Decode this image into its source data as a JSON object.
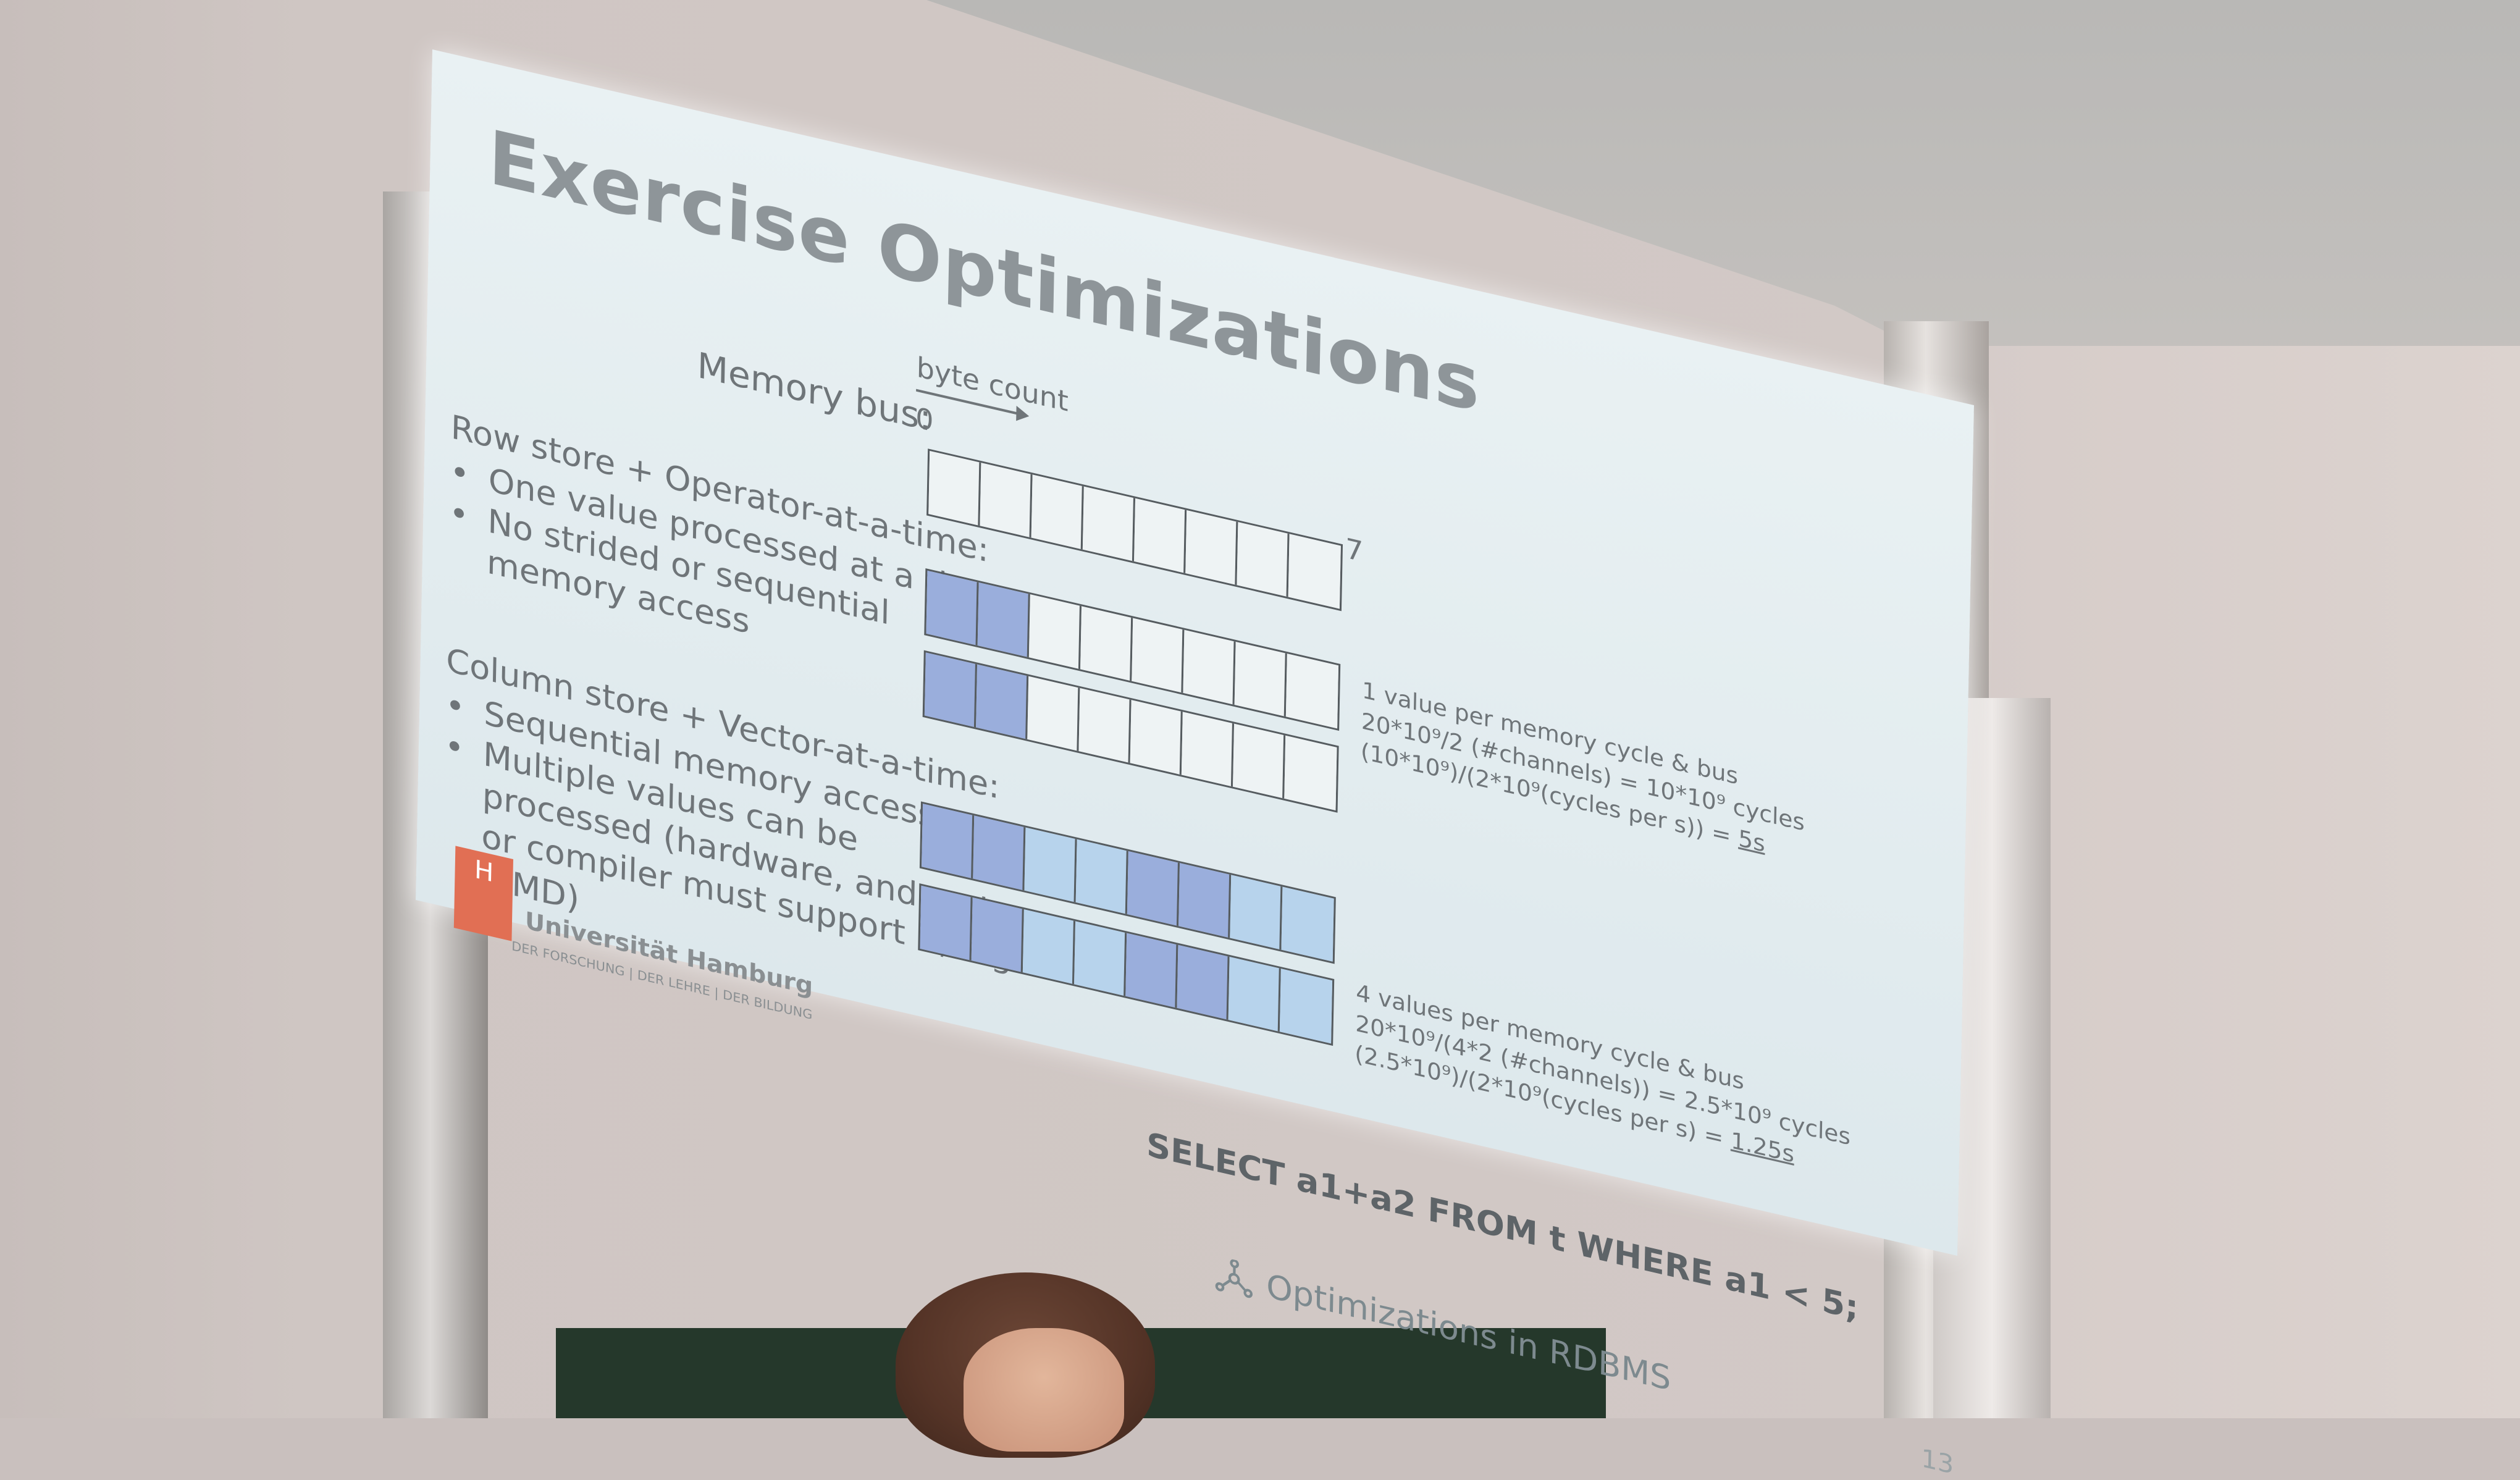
{
  "slide": {
    "title": "Exercise Optimizations",
    "memory_bus_label": "Memory bus:",
    "byte_count_label": "byte count",
    "index_start": "0",
    "index_end": "7",
    "row_store": {
      "heading": "Row store + Operator-at-a-time:",
      "bullets": [
        "One value processed at a time",
        "No strided or sequential",
        "memory access"
      ]
    },
    "column_store": {
      "heading": "Column store + Vector-at-a-time:",
      "bullets": [
        "Sequential memory access",
        "Multiple values can be",
        "processed (hardware, and code",
        "or compiler must support it, e.g.",
        "SIMD)"
      ]
    },
    "row_note": {
      "line1": "1 value per memory cycle & bus",
      "line2": "20*10⁹/2 (#channels) = 10*10⁹ cycles",
      "line3": "(10*10⁹)/(2*10⁹(cycles per s)) = ",
      "result": "5s"
    },
    "column_note": {
      "line1": "4 values per memory cycle & bus",
      "line2": "20*10⁹/(4*2 (#channels)) = 2.5*10⁹ cycles",
      "line3": "(2.5*10⁹)/(2*10⁹(cycles per s) = ",
      "result": "1.25s"
    },
    "query": "SELECT a1+a2 FROM t WHERE a1 < 5;",
    "footer": "Optimizations in RDBMS",
    "page_number": "13",
    "university": "Universität Hamburg",
    "university_sub": "DER FORSCHUNG | DER LEHRE | DER BILDUNG",
    "logo_letter": "H"
  },
  "colors": {
    "cell_dark": "#9aaedc",
    "cell_light": "#b7d3ec",
    "logo": "#e16f54"
  }
}
